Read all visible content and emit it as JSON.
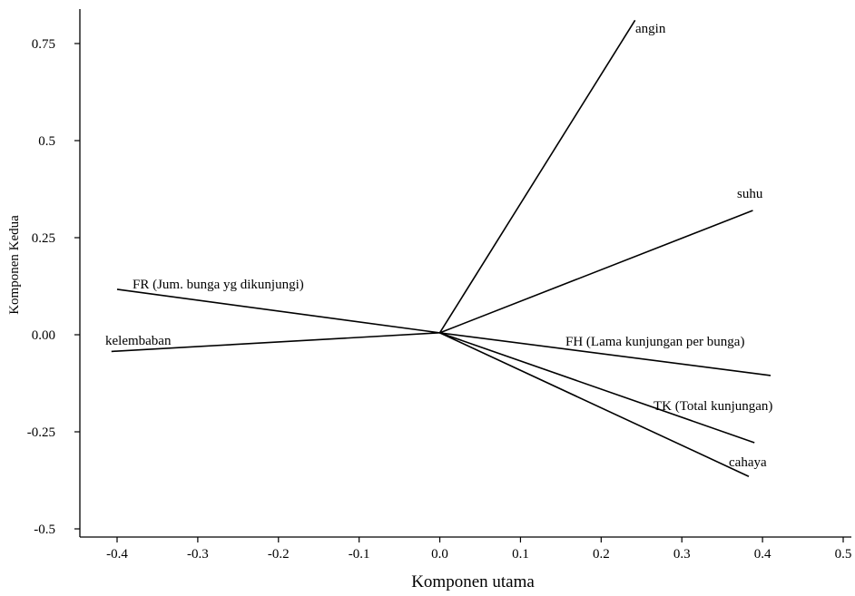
{
  "chart_data": {
    "type": "biplot",
    "title": "",
    "xlabel": "Komponen utama",
    "ylabel": "Komponen Kedua",
    "xlim": [
      -0.45,
      0.51
    ],
    "ylim": [
      -0.53,
      0.84
    ],
    "xticks": [
      -0.4,
      -0.3,
      -0.2,
      -0.1,
      0.0,
      0.1,
      0.2,
      0.3,
      0.4,
      0.5
    ],
    "xtick_labels": [
      "-0.4",
      "-0.3",
      "-0.2",
      "-0.1",
      "0.0",
      "0.1",
      "0.2",
      "0.3",
      "0.4",
      "0.5"
    ],
    "yticks": [
      -0.5,
      -0.25,
      0.0,
      0.25,
      0.5,
      0.75
    ],
    "ytick_labels": [
      "-0.5",
      "-0.25",
      "0.00",
      "0.25",
      "0.5",
      "0.75"
    ],
    "grid": false,
    "origin": [
      0.0,
      0.005
    ],
    "vectors": [
      {
        "label": "angin",
        "x": 0.242,
        "y": 0.81
      },
      {
        "label": "suhu",
        "x": 0.388,
        "y": 0.32
      },
      {
        "label": "FR (Jum. bunga yg dikunjungi)",
        "x": -0.4,
        "y": 0.117
      },
      {
        "label": "kelembaban",
        "x": -0.407,
        "y": -0.043
      },
      {
        "label": "FH (Lama kunjungan per bunga)",
        "x": 0.41,
        "y": -0.105
      },
      {
        "label": "TK (Total kunjungan)",
        "x": 0.39,
        "y": -0.278
      },
      {
        "label": "cahaya",
        "x": 0.383,
        "y": -0.365
      }
    ]
  }
}
